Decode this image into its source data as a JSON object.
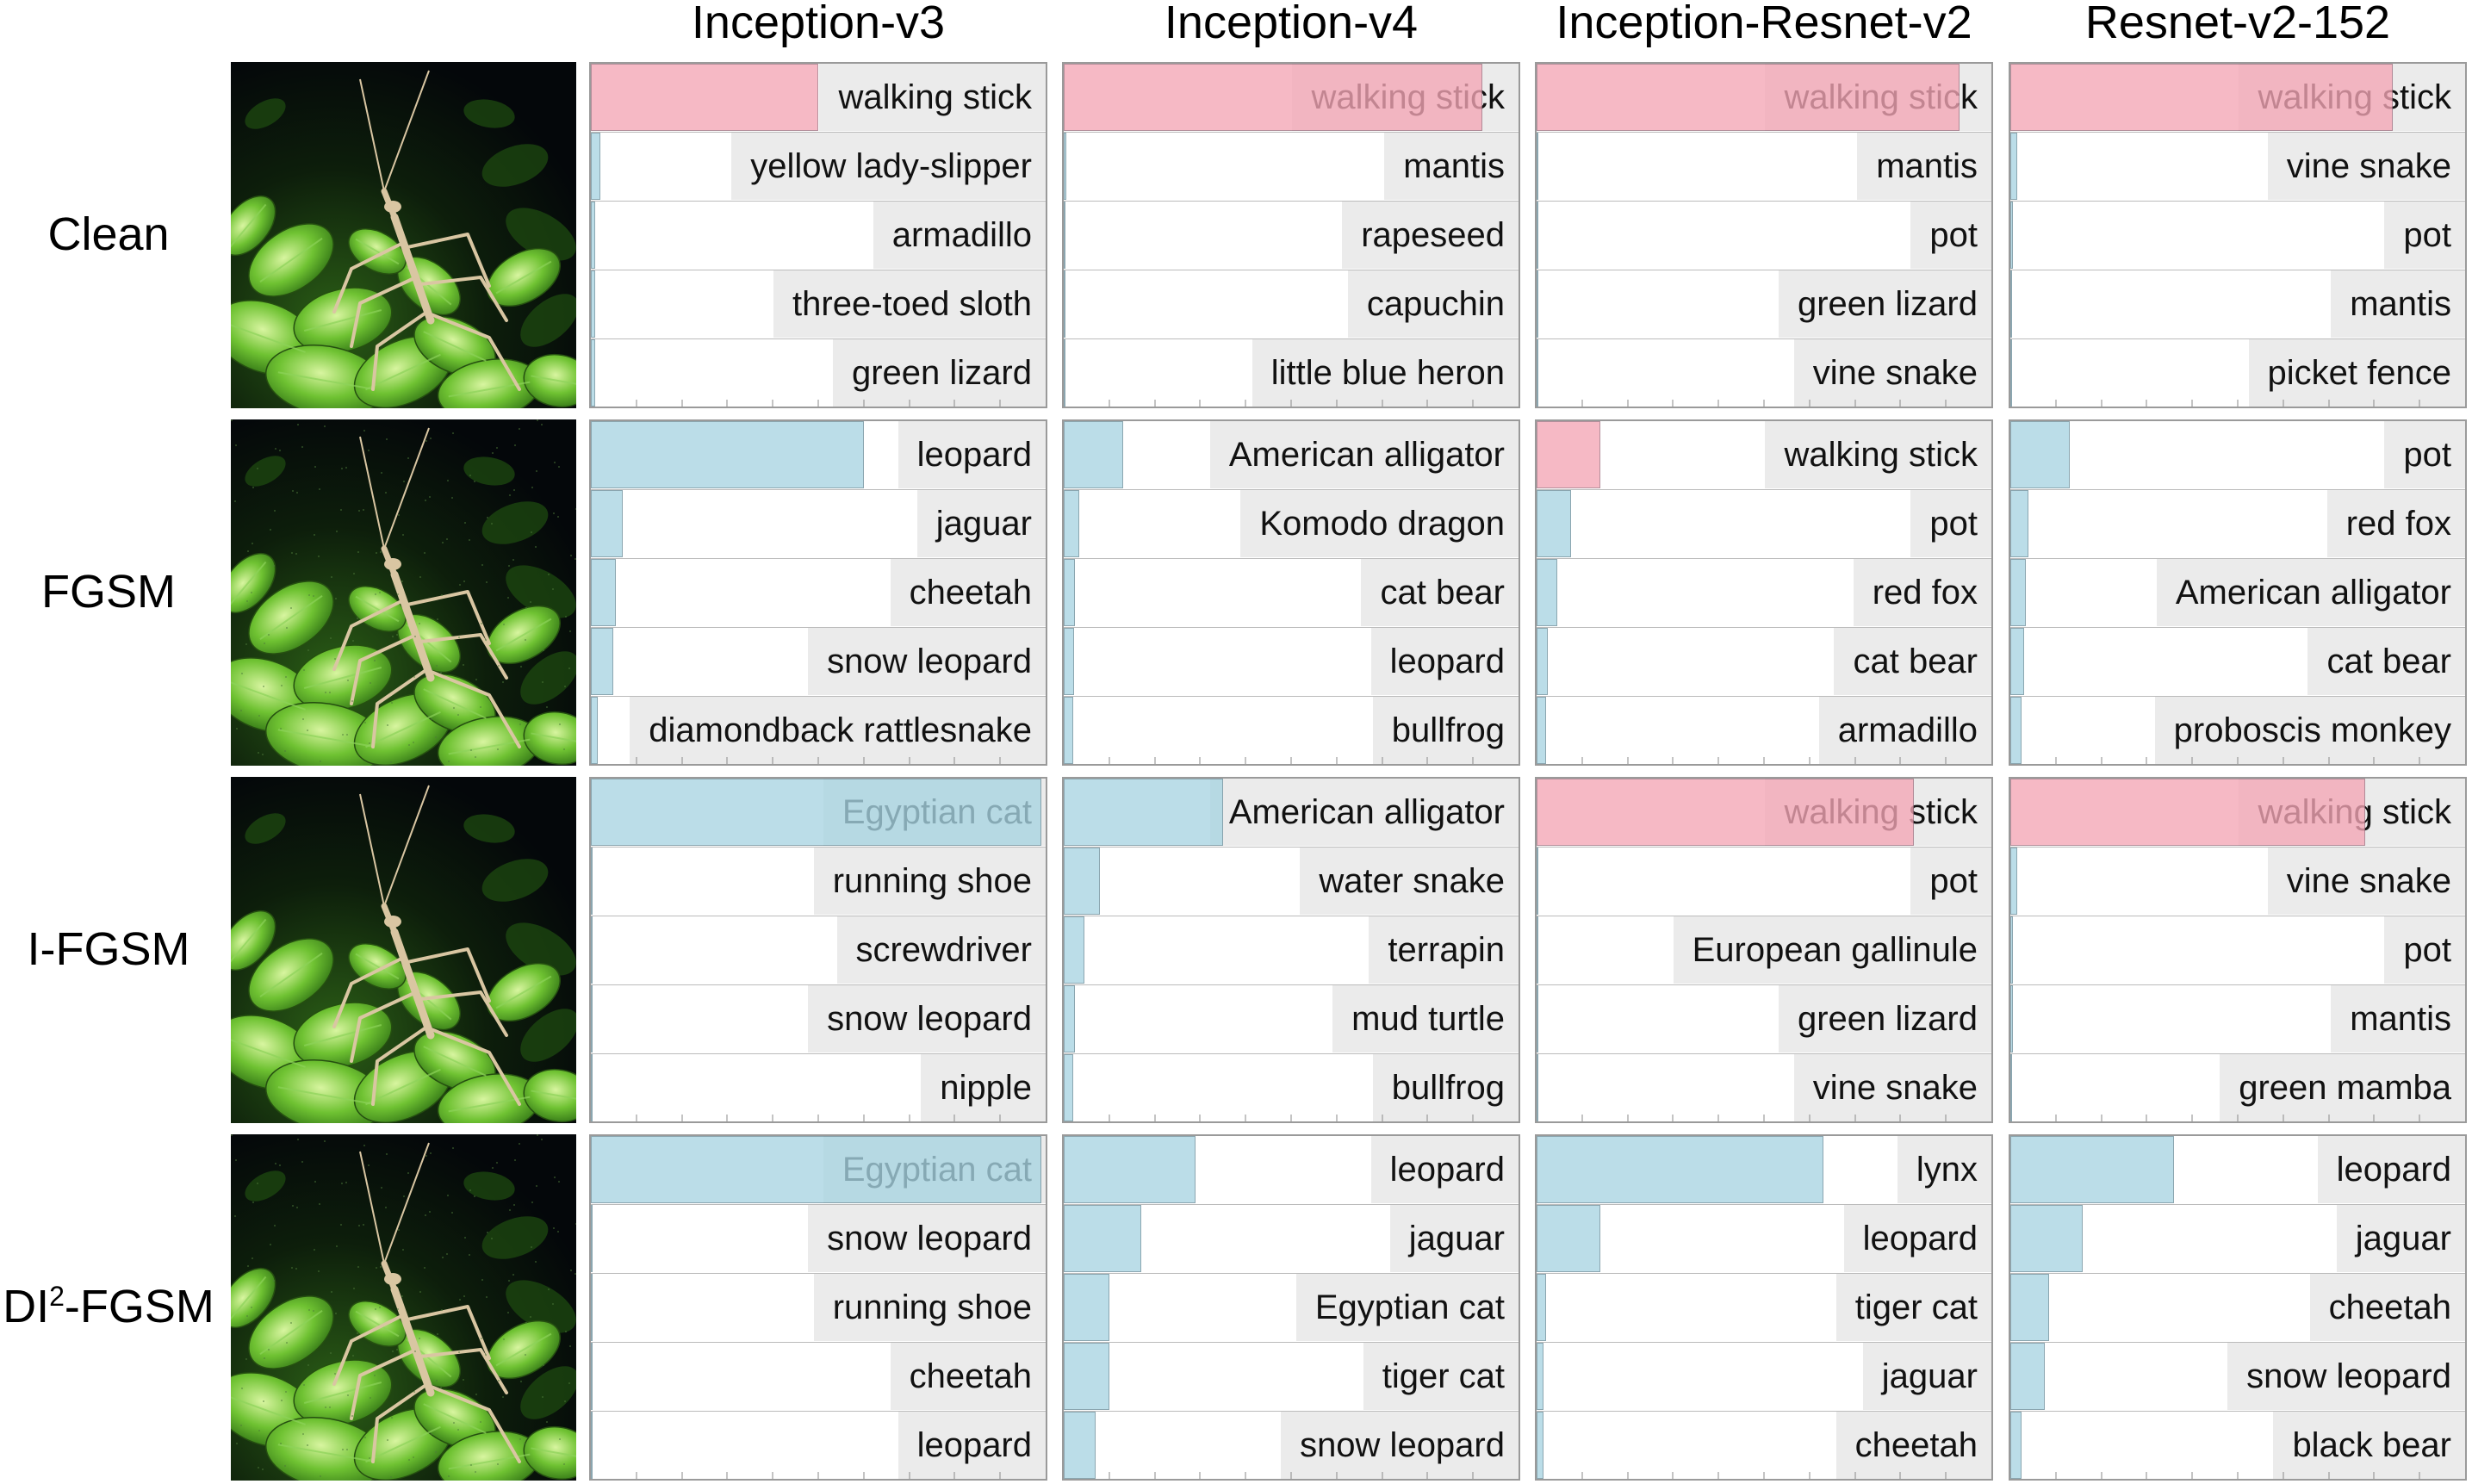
{
  "colors": {
    "correct_bar": "#f4a6b6",
    "other_bar": "#a8d4e2",
    "label_bg": "#ebebeb",
    "panel_border": "#9a9a9a"
  },
  "models": [
    "Inception-v3",
    "Inception-v4",
    "Inception-Resnet-v2",
    "Resnet-v2-152"
  ],
  "methods": [
    {
      "label": "Clean",
      "sup": ""
    },
    {
      "label": "FGSM",
      "sup": ""
    },
    {
      "label": "I-FGSM",
      "sup": ""
    },
    {
      "label_prefix": "DI",
      "sup": "2",
      "label_suffix": "-FGSM",
      "label": "DI2-FGSM"
    }
  ],
  "chart_data": [
    {
      "type": "bar",
      "orientation": "horizontal",
      "row_method": "Clean",
      "panels": [
        {
          "model": "Inception-v3",
          "categories": [
            "walking stick",
            "yellow lady-slipper",
            "armadillo",
            "three-toed sloth",
            "green lizard"
          ],
          "values": [
            0.5,
            0.02,
            0.01,
            0.01,
            0.01
          ],
          "correct": [
            true,
            false,
            false,
            false,
            false
          ]
        },
        {
          "model": "Inception-v4",
          "categories": [
            "walking stick",
            "mantis",
            "rapeseed",
            "capuchin",
            "little blue heron"
          ],
          "values": [
            0.92,
            0.005,
            0.004,
            0.003,
            0.003
          ],
          "correct": [
            true,
            false,
            false,
            false,
            false
          ]
        },
        {
          "model": "Inception-Resnet-v2",
          "categories": [
            "walking stick",
            "mantis",
            "pot",
            "green lizard",
            "vine snake"
          ],
          "values": [
            0.93,
            0.002,
            0.002,
            0.002,
            0.002
          ],
          "correct": [
            true,
            false,
            false,
            false,
            false
          ]
        },
        {
          "model": "Resnet-v2-152",
          "categories": [
            "walking stick",
            "vine snake",
            "pot",
            "mantis",
            "picket fence"
          ],
          "values": [
            0.84,
            0.015,
            0.005,
            0.004,
            0.004
          ],
          "correct": [
            true,
            false,
            false,
            false,
            false
          ]
        }
      ]
    },
    {
      "type": "bar",
      "orientation": "horizontal",
      "row_method": "FGSM",
      "panels": [
        {
          "model": "Inception-v3",
          "categories": [
            "leopard",
            "jaguar",
            "cheetah",
            "snow leopard",
            "diamondback rattlesnake"
          ],
          "values": [
            0.6,
            0.07,
            0.055,
            0.05,
            0.015
          ],
          "correct": [
            false,
            false,
            false,
            false,
            false
          ]
        },
        {
          "model": "Inception-v4",
          "categories": [
            "American alligator",
            "Komodo dragon",
            "cat bear",
            "leopard",
            "bullfrog"
          ],
          "values": [
            0.13,
            0.035,
            0.025,
            0.022,
            0.02
          ],
          "correct": [
            false,
            false,
            false,
            false,
            false
          ]
        },
        {
          "model": "Inception-Resnet-v2",
          "categories": [
            "walking stick",
            "pot",
            "red fox",
            "cat bear",
            "armadillo"
          ],
          "values": [
            0.14,
            0.075,
            0.045,
            0.025,
            0.02
          ],
          "correct": [
            true,
            false,
            false,
            false,
            false
          ]
        },
        {
          "model": "Resnet-v2-152",
          "categories": [
            "pot",
            "red fox",
            "American alligator",
            "cat bear",
            "proboscis monkey"
          ],
          "values": [
            0.13,
            0.04,
            0.035,
            0.03,
            0.025
          ],
          "correct": [
            false,
            false,
            false,
            false,
            false
          ]
        }
      ]
    },
    {
      "type": "bar",
      "orientation": "horizontal",
      "row_method": "I-FGSM",
      "panels": [
        {
          "model": "Inception-v3",
          "categories": [
            "Egyptian cat",
            "running shoe",
            "screwdriver",
            "snow leopard",
            "nipple"
          ],
          "values": [
            0.99,
            0.003,
            0.003,
            0.002,
            0.002
          ],
          "correct": [
            false,
            false,
            false,
            false,
            false
          ]
        },
        {
          "model": "Inception-v4",
          "categories": [
            "American alligator",
            "water snake",
            "terrapin",
            "mud turtle",
            "bullfrog"
          ],
          "values": [
            0.35,
            0.08,
            0.045,
            0.025,
            0.02
          ],
          "correct": [
            false,
            false,
            false,
            false,
            false
          ]
        },
        {
          "model": "Inception-Resnet-v2",
          "categories": [
            "walking stick",
            "pot",
            "European gallinule",
            "green lizard",
            "vine snake"
          ],
          "values": [
            0.83,
            0.003,
            0.003,
            0.002,
            0.002
          ],
          "correct": [
            true,
            false,
            false,
            false,
            false
          ]
        },
        {
          "model": "Resnet-v2-152",
          "categories": [
            "walking stick",
            "vine snake",
            "pot",
            "mantis",
            "green mamba"
          ],
          "values": [
            0.78,
            0.015,
            0.006,
            0.005,
            0.004
          ],
          "correct": [
            true,
            false,
            false,
            false,
            false
          ]
        }
      ]
    },
    {
      "type": "bar",
      "orientation": "horizontal",
      "row_method": "DI2-FGSM",
      "panels": [
        {
          "model": "Inception-v3",
          "categories": [
            "Egyptian cat",
            "snow leopard",
            "running shoe",
            "cheetah",
            "leopard"
          ],
          "values": [
            0.99,
            0.003,
            0.002,
            0.002,
            0.002
          ],
          "correct": [
            false,
            false,
            false,
            false,
            false
          ]
        },
        {
          "model": "Inception-v4",
          "categories": [
            "leopard",
            "jaguar",
            "Egyptian cat",
            "tiger cat",
            "snow leopard"
          ],
          "values": [
            0.29,
            0.17,
            0.1,
            0.1,
            0.07
          ],
          "correct": [
            false,
            false,
            false,
            false,
            false
          ]
        },
        {
          "model": "Inception-Resnet-v2",
          "categories": [
            "lynx",
            "leopard",
            "tiger cat",
            "jaguar",
            "cheetah"
          ],
          "values": [
            0.63,
            0.14,
            0.02,
            0.015,
            0.015
          ],
          "correct": [
            false,
            false,
            false,
            false,
            false
          ]
        },
        {
          "model": "Resnet-v2-152",
          "categories": [
            "leopard",
            "jaguar",
            "cheetah",
            "snow leopard",
            "black bear"
          ],
          "values": [
            0.36,
            0.16,
            0.085,
            0.075,
            0.025
          ],
          "correct": [
            false,
            false,
            false,
            false,
            false
          ]
        }
      ]
    }
  ]
}
